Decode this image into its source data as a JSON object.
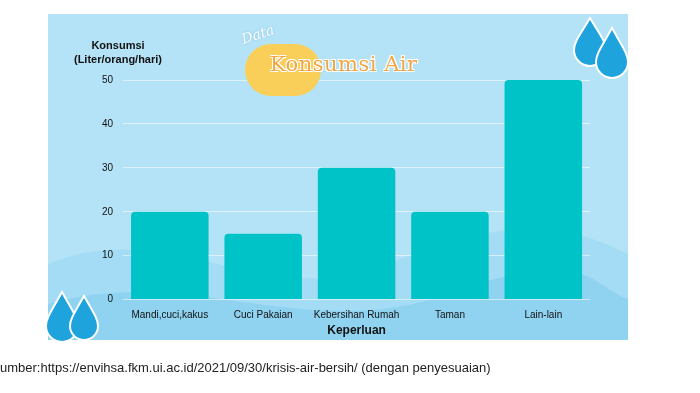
{
  "chart_data": {
    "type": "bar",
    "title": "Konsumsi Air",
    "subtitle": "Data",
    "y_label": "Konsumsi (Liter/orang/hari)",
    "x_label": "Keperluan",
    "categories": [
      "Mandi,cuci,kakus",
      "Cuci Pakaian",
      "Kebersihan Rumah",
      "Taman",
      "Lain-lain"
    ],
    "values": [
      20,
      15,
      30,
      20,
      50
    ],
    "color": "#00c3c7",
    "ylim": [
      0,
      50
    ],
    "yticks": [
      0,
      10,
      20,
      30,
      40,
      50
    ],
    "grid": true,
    "annotations": [
      "umber:https://envihsa.fkm.ui.ac.id/2021/09/30/krisis-air-bersih/ (dengan penyesuaian)"
    ]
  }
}
